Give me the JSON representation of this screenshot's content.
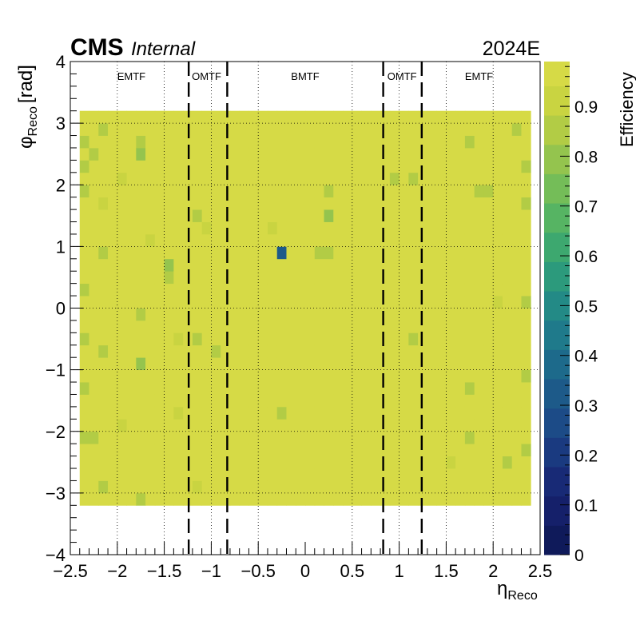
{
  "header": {
    "experiment": "CMS",
    "status": "Internal",
    "era": "2024E"
  },
  "colorbar": {
    "title": "Efficiency",
    "ticks": [
      "0",
      "0.1",
      "0.2",
      "0.3",
      "0.4",
      "0.5",
      "0.6",
      "0.7",
      "0.8",
      "0.9"
    ],
    "palette": [
      "#0f1a5a",
      "#15206a",
      "#182a76",
      "#1a3a80",
      "#1c4b87",
      "#1d5a89",
      "#1d6a8b",
      "#1f7a8b",
      "#238a86",
      "#2c9a7c",
      "#3da86f",
      "#56b463",
      "#74bd58",
      "#94c44e",
      "#b2cc45",
      "#c9d441",
      "#d6da46"
    ]
  },
  "chart_data": {
    "type": "heatmap",
    "title": "",
    "xlabel": "η",
    "xlabel_sub": "Reco",
    "ylabel": "φ",
    "ylabel_sub": "Reco",
    "ylabel_unit": "[rad]",
    "xlim": [
      -2.5,
      2.5
    ],
    "ylim": [
      -4,
      4
    ],
    "zlim": [
      0,
      1
    ],
    "x_ticks": [
      "−2.5",
      "−2",
      "−1.5",
      "−1",
      "−0.5",
      "0",
      "0.5",
      "1",
      "1.5",
      "2",
      "2.5"
    ],
    "y_ticks": [
      "−4",
      "−3",
      "−2",
      "−1",
      "0",
      "1",
      "2",
      "3",
      "4"
    ],
    "x_edges": [
      -2.4,
      2.4
    ],
    "y_edges": [
      -3.2,
      3.2
    ],
    "n_eta_bins": 48,
    "n_phi_bins": 32,
    "baseline_efficiency": 0.97,
    "cells": [
      {
        "eta": -2.35,
        "phi": 2.7,
        "eff": 0.87
      },
      {
        "eta": -2.35,
        "phi": 2.3,
        "eff": 0.85
      },
      {
        "eta": -2.35,
        "phi": 1.9,
        "eff": 0.86
      },
      {
        "eta": -2.35,
        "phi": 0.3,
        "eff": 0.88
      },
      {
        "eta": -2.35,
        "phi": -0.5,
        "eff": 0.87
      },
      {
        "eta": -2.35,
        "phi": -1.3,
        "eff": 0.88
      },
      {
        "eta": -2.35,
        "phi": -2.1,
        "eff": 0.86
      },
      {
        "eta": -2.25,
        "phi": -2.1,
        "eff": 0.85
      },
      {
        "eta": -2.25,
        "phi": 2.5,
        "eff": 0.88
      },
      {
        "eta": -2.15,
        "phi": 2.9,
        "eff": 0.87
      },
      {
        "eta": -2.15,
        "phi": 1.7,
        "eff": 0.9
      },
      {
        "eta": -2.15,
        "phi": 0.9,
        "eff": 0.87
      },
      {
        "eta": -2.15,
        "phi": -0.7,
        "eff": 0.87
      },
      {
        "eta": -2.15,
        "phi": -2.9,
        "eff": 0.86
      },
      {
        "eta": -1.95,
        "phi": 2.1,
        "eff": 0.9
      },
      {
        "eta": -1.95,
        "phi": -1.9,
        "eff": 0.9
      },
      {
        "eta": -1.75,
        "phi": 2.7,
        "eff": 0.84
      },
      {
        "eta": -1.75,
        "phi": 2.5,
        "eff": 0.82
      },
      {
        "eta": -1.75,
        "phi": -0.1,
        "eff": 0.86
      },
      {
        "eta": -1.75,
        "phi": -0.9,
        "eff": 0.82
      },
      {
        "eta": -1.75,
        "phi": -3.1,
        "eff": 0.84
      },
      {
        "eta": -1.65,
        "phi": 1.1,
        "eff": 0.9
      },
      {
        "eta": -1.45,
        "phi": 0.7,
        "eff": 0.82
      },
      {
        "eta": -1.45,
        "phi": 0.5,
        "eff": 0.84
      },
      {
        "eta": -1.35,
        "phi": -0.5,
        "eff": 0.9
      },
      {
        "eta": -1.35,
        "phi": -1.7,
        "eff": 0.9
      },
      {
        "eta": -1.15,
        "phi": 1.5,
        "eff": 0.88
      },
      {
        "eta": -1.15,
        "phi": -0.5,
        "eff": 0.88
      },
      {
        "eta": -1.15,
        "phi": -2.9,
        "eff": 0.9
      },
      {
        "eta": -1.05,
        "phi": 1.3,
        "eff": 0.9
      },
      {
        "eta": -0.95,
        "phi": -0.7,
        "eff": 0.88
      },
      {
        "eta": -0.25,
        "phi": 0.95,
        "eff": 0.33
      },
      {
        "eta": -0.35,
        "phi": 1.3,
        "eff": 0.9
      },
      {
        "eta": -0.25,
        "phi": -1.7,
        "eff": 0.88
      },
      {
        "eta": 0.25,
        "phi": 1.9,
        "eff": 0.84
      },
      {
        "eta": 0.25,
        "phi": 1.5,
        "eff": 0.82
      },
      {
        "eta": 0.25,
        "phi": 0.9,
        "eff": 0.84
      },
      {
        "eta": 0.15,
        "phi": 0.9,
        "eff": 0.86
      },
      {
        "eta": 0.95,
        "phi": 2.1,
        "eff": 0.88
      },
      {
        "eta": 1.15,
        "phi": 2.1,
        "eff": 0.85
      },
      {
        "eta": 1.15,
        "phi": -0.5,
        "eff": 0.87
      },
      {
        "eta": 1.55,
        "phi": -2.5,
        "eff": 0.89
      },
      {
        "eta": 1.75,
        "phi": 2.7,
        "eff": 0.86
      },
      {
        "eta": 1.75,
        "phi": -2.1,
        "eff": 0.84
      },
      {
        "eta": 1.75,
        "phi": -1.3,
        "eff": 0.88
      },
      {
        "eta": 1.85,
        "phi": 1.9,
        "eff": 0.85
      },
      {
        "eta": 1.95,
        "phi": 1.9,
        "eff": 0.84
      },
      {
        "eta": 2.05,
        "phi": 0.1,
        "eff": 0.89
      },
      {
        "eta": 2.15,
        "phi": -2.5,
        "eff": 0.88
      },
      {
        "eta": 2.25,
        "phi": 2.9,
        "eff": 0.86
      },
      {
        "eta": 2.35,
        "phi": 2.3,
        "eff": 0.87
      },
      {
        "eta": 2.35,
        "phi": 1.7,
        "eff": 0.86
      },
      {
        "eta": 2.35,
        "phi": 0.1,
        "eff": 0.88
      },
      {
        "eta": 2.35,
        "phi": -1.1,
        "eff": 0.86
      },
      {
        "eta": 2.35,
        "phi": -2.3,
        "eff": 0.87
      }
    ],
    "regions": [
      {
        "label": "EMTF",
        "eta": -1.85
      },
      {
        "label": "OMTF",
        "eta": -1.05
      },
      {
        "label": "BMTF",
        "eta": 0.0
      },
      {
        "label": "OMTF",
        "eta": 1.03
      },
      {
        "label": "EMTF",
        "eta": 1.85
      }
    ],
    "boundaries": [
      -1.24,
      -0.83,
      0.83,
      1.24
    ],
    "dotted_verticals": [
      -2.0,
      -1.5,
      -1.0,
      -0.5,
      0.5,
      1.0,
      1.5,
      2.0
    ],
    "dotted_horizontals": [
      -3,
      -2,
      -1,
      0,
      1,
      2,
      3
    ],
    "grid": true
  }
}
